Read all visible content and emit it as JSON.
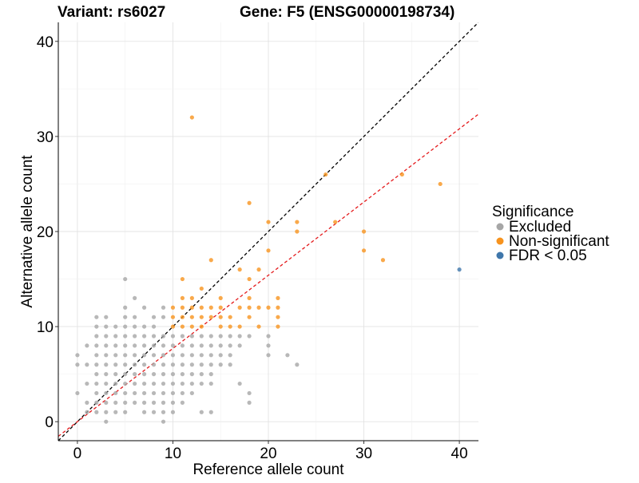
{
  "chart_data": {
    "type": "scatter",
    "title_left": "Variant: rs6027",
    "title_right": "Gene: F5 (ENSG00000198734)",
    "xlabel": "Reference allele count",
    "ylabel": "Alternative allele count",
    "xlim": [
      -2,
      42
    ],
    "ylim": [
      -2,
      42
    ],
    "xticks": [
      0,
      10,
      20,
      30,
      40
    ],
    "yticks": [
      0,
      10,
      20,
      30,
      40
    ],
    "grid": true,
    "legend": {
      "title": "Significance",
      "position": "right",
      "entries": [
        {
          "label": "Excluded",
          "color": "#a6a6a6"
        },
        {
          "label": "Non-significant",
          "color": "#f7931e"
        },
        {
          "label": "FDR < 0.05",
          "color": "#3f77ab"
        }
      ]
    },
    "reference_lines": [
      {
        "name": "identity",
        "slope": 1.0,
        "intercept": 0,
        "color": "#000000",
        "style": "dashed"
      },
      {
        "name": "fit",
        "slope": 0.77,
        "intercept": 0,
        "color": "#e41a1c",
        "style": "dashed"
      }
    ],
    "series": [
      {
        "name": "Excluded",
        "color": "#a6a6a6",
        "points": [
          [
            0,
            3
          ],
          [
            0,
            6
          ],
          [
            0,
            7
          ],
          [
            1,
            1
          ],
          [
            1,
            2
          ],
          [
            1,
            4
          ],
          [
            1,
            6
          ],
          [
            1,
            8
          ],
          [
            2,
            1
          ],
          [
            2,
            2
          ],
          [
            2,
            3
          ],
          [
            2,
            4
          ],
          [
            2,
            5
          ],
          [
            2,
            6
          ],
          [
            2,
            7
          ],
          [
            2,
            8
          ],
          [
            2,
            9
          ],
          [
            2,
            10
          ],
          [
            2,
            11
          ],
          [
            3,
            0
          ],
          [
            3,
            1
          ],
          [
            3,
            2
          ],
          [
            3,
            3
          ],
          [
            3,
            4
          ],
          [
            3,
            5
          ],
          [
            3,
            6
          ],
          [
            3,
            7
          ],
          [
            3,
            8
          ],
          [
            3,
            9
          ],
          [
            3,
            10
          ],
          [
            3,
            11
          ],
          [
            4,
            1
          ],
          [
            4,
            2
          ],
          [
            4,
            3
          ],
          [
            4,
            4
          ],
          [
            4,
            5
          ],
          [
            4,
            6
          ],
          [
            4,
            7
          ],
          [
            4,
            8
          ],
          [
            4,
            9
          ],
          [
            4,
            10
          ],
          [
            5,
            1
          ],
          [
            5,
            2
          ],
          [
            5,
            3
          ],
          [
            5,
            4
          ],
          [
            5,
            5
          ],
          [
            5,
            6
          ],
          [
            5,
            7
          ],
          [
            5,
            8
          ],
          [
            5,
            9
          ],
          [
            5,
            10
          ],
          [
            5,
            11
          ],
          [
            5,
            12
          ],
          [
            5,
            15
          ],
          [
            6,
            2
          ],
          [
            6,
            3
          ],
          [
            6,
            4
          ],
          [
            6,
            5
          ],
          [
            6,
            6
          ],
          [
            6,
            7
          ],
          [
            6,
            8
          ],
          [
            6,
            9
          ],
          [
            6,
            10
          ],
          [
            6,
            11
          ],
          [
            6,
            13
          ],
          [
            7,
            1
          ],
          [
            7,
            2
          ],
          [
            7,
            3
          ],
          [
            7,
            4
          ],
          [
            7,
            5
          ],
          [
            7,
            6
          ],
          [
            7,
            7
          ],
          [
            7,
            8
          ],
          [
            7,
            9
          ],
          [
            7,
            10
          ],
          [
            7,
            12
          ],
          [
            8,
            1
          ],
          [
            8,
            2
          ],
          [
            8,
            3
          ],
          [
            8,
            4
          ],
          [
            8,
            5
          ],
          [
            8,
            6
          ],
          [
            8,
            7
          ],
          [
            8,
            8
          ],
          [
            8,
            9
          ],
          [
            8,
            10
          ],
          [
            8,
            11
          ],
          [
            9,
            0
          ],
          [
            9,
            1
          ],
          [
            9,
            2
          ],
          [
            9,
            3
          ],
          [
            9,
            4
          ],
          [
            9,
            5
          ],
          [
            9,
            6
          ],
          [
            9,
            7
          ],
          [
            9,
            8
          ],
          [
            9,
            9
          ],
          [
            9,
            11
          ],
          [
            9,
            12
          ],
          [
            10,
            1
          ],
          [
            10,
            2
          ],
          [
            10,
            3
          ],
          [
            10,
            4
          ],
          [
            10,
            5
          ],
          [
            10,
            6
          ],
          [
            10,
            7
          ],
          [
            10,
            8
          ],
          [
            10,
            9
          ],
          [
            11,
            2
          ],
          [
            11,
            3
          ],
          [
            11,
            4
          ],
          [
            11,
            5
          ],
          [
            11,
            6
          ],
          [
            11,
            7
          ],
          [
            11,
            8
          ],
          [
            11,
            9
          ],
          [
            12,
            3
          ],
          [
            12,
            4
          ],
          [
            12,
            5
          ],
          [
            12,
            6
          ],
          [
            12,
            7
          ],
          [
            12,
            8
          ],
          [
            12,
            9
          ],
          [
            13,
            1
          ],
          [
            13,
            4
          ],
          [
            13,
            5
          ],
          [
            13,
            6
          ],
          [
            13,
            7
          ],
          [
            13,
            8
          ],
          [
            13,
            9
          ],
          [
            14,
            1
          ],
          [
            14,
            4
          ],
          [
            14,
            5
          ],
          [
            14,
            6
          ],
          [
            14,
            7
          ],
          [
            14,
            8
          ],
          [
            14,
            9
          ],
          [
            15,
            6
          ],
          [
            15,
            7
          ],
          [
            15,
            8
          ],
          [
            15,
            9
          ],
          [
            16,
            6
          ],
          [
            16,
            7
          ],
          [
            16,
            8
          ],
          [
            16,
            9
          ],
          [
            17,
            4
          ],
          [
            17,
            8
          ],
          [
            17,
            9
          ],
          [
            18,
            2
          ],
          [
            18,
            3
          ],
          [
            18,
            9
          ],
          [
            20,
            7
          ],
          [
            20,
            8
          ],
          [
            20,
            9
          ],
          [
            22,
            7
          ],
          [
            23,
            6
          ]
        ]
      },
      {
        "name": "Non-significant",
        "color": "#f7931e",
        "points": [
          [
            10,
            10
          ],
          [
            10,
            11
          ],
          [
            10,
            12
          ],
          [
            11,
            10
          ],
          [
            11,
            11
          ],
          [
            11,
            12
          ],
          [
            11,
            13
          ],
          [
            11,
            15
          ],
          [
            12,
            10
          ],
          [
            12,
            11
          ],
          [
            12,
            12
          ],
          [
            12,
            13
          ],
          [
            12,
            32
          ],
          [
            13,
            10
          ],
          [
            13,
            11
          ],
          [
            13,
            12
          ],
          [
            13,
            14
          ],
          [
            14,
            11
          ],
          [
            14,
            12
          ],
          [
            14,
            17
          ],
          [
            15,
            10
          ],
          [
            15,
            11
          ],
          [
            15,
            12
          ],
          [
            15,
            13
          ],
          [
            16,
            10
          ],
          [
            16,
            11
          ],
          [
            17,
            10
          ],
          [
            17,
            12
          ],
          [
            17,
            16
          ],
          [
            18,
            11
          ],
          [
            18,
            12
          ],
          [
            18,
            13
          ],
          [
            18,
            15
          ],
          [
            18,
            23
          ],
          [
            19,
            10
          ],
          [
            19,
            12
          ],
          [
            19,
            16
          ],
          [
            20,
            12
          ],
          [
            20,
            18
          ],
          [
            20,
            21
          ],
          [
            21,
            10
          ],
          [
            21,
            11
          ],
          [
            21,
            12
          ],
          [
            21,
            13
          ],
          [
            23,
            20
          ],
          [
            23,
            21
          ],
          [
            26,
            26
          ],
          [
            27,
            21
          ],
          [
            30,
            18
          ],
          [
            30,
            20
          ],
          [
            32,
            17
          ],
          [
            34,
            26
          ],
          [
            38,
            25
          ]
        ]
      },
      {
        "name": "FDR < 0.05",
        "color": "#3f77ab",
        "points": [
          [
            40,
            16
          ]
        ]
      }
    ]
  }
}
